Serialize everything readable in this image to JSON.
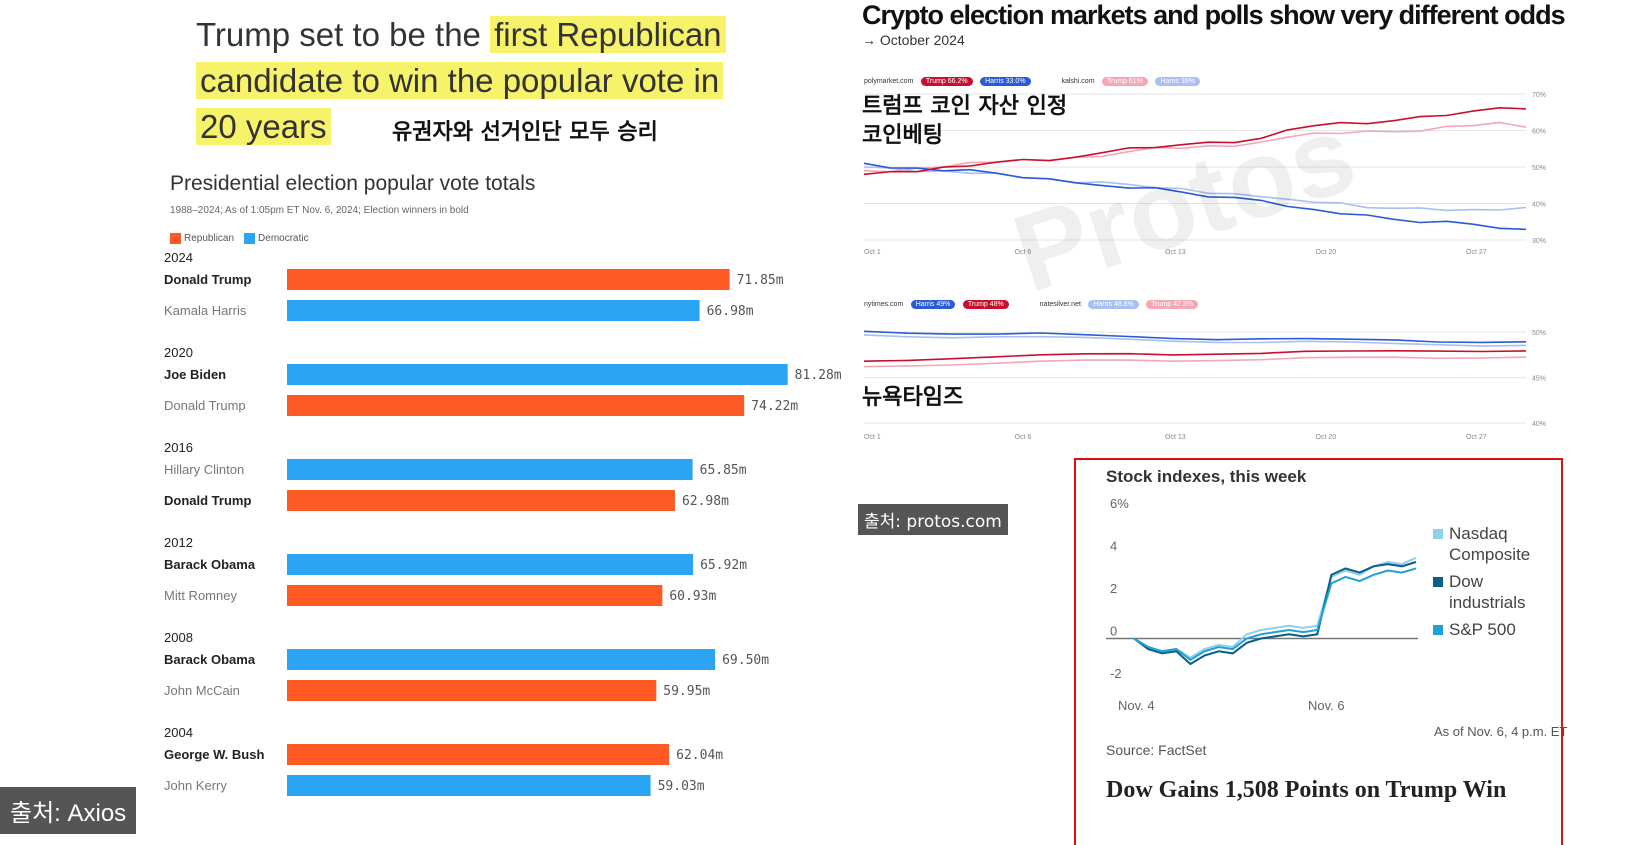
{
  "headline": {
    "prefix": "Trump set to be the ",
    "highlight1": "first Republican",
    "highlight2": "candidate to win the popular vote in",
    "highlight3": "20 years",
    "korean": "유권자와 선거인단 모두 승리"
  },
  "source_axios": "출처: Axios",
  "source_protos": "출처: protos.com",
  "chart_data": [
    {
      "type": "bar",
      "title": "Presidential election popular vote totals",
      "subtitle": "1988–2024; As of 1:05pm ET Nov. 6, 2024; Election winners in bold",
      "legend": [
        "Republican",
        "Democratic"
      ],
      "colors": {
        "Republican": "#ff5a24",
        "Democratic": "#2ba4f4"
      },
      "groups": [
        {
          "year": "2024",
          "bars": [
            {
              "candidate": "Donald Trump",
              "party": "Republican",
              "value": 71.85,
              "label": "71.85m",
              "winner": true
            },
            {
              "candidate": "Kamala Harris",
              "party": "Democratic",
              "value": 66.98,
              "label": "66.98m",
              "winner": false
            }
          ]
        },
        {
          "year": "2020",
          "bars": [
            {
              "candidate": "Joe Biden",
              "party": "Democratic",
              "value": 81.28,
              "label": "81.28m",
              "winner": true
            },
            {
              "candidate": "Donald Trump",
              "party": "Republican",
              "value": 74.22,
              "label": "74.22m",
              "winner": false
            }
          ]
        },
        {
          "year": "2016",
          "bars": [
            {
              "candidate": "Hillary Clinton",
              "party": "Democratic",
              "value": 65.85,
              "label": "65.85m",
              "winner": false
            },
            {
              "candidate": "Donald Trump",
              "party": "Republican",
              "value": 62.98,
              "label": "62.98m",
              "winner": true
            }
          ]
        },
        {
          "year": "2012",
          "bars": [
            {
              "candidate": "Barack Obama",
              "party": "Democratic",
              "value": 65.92,
              "label": "65.92m",
              "winner": true
            },
            {
              "candidate": "Mitt Romney",
              "party": "Republican",
              "value": 60.93,
              "label": "60.93m",
              "winner": false
            }
          ]
        },
        {
          "year": "2008",
          "bars": [
            {
              "candidate": "Barack Obama",
              "party": "Democratic",
              "value": 69.5,
              "label": "69.50m",
              "winner": true
            },
            {
              "candidate": "John McCain",
              "party": "Republican",
              "value": 59.95,
              "label": "59.95m",
              "winner": false
            }
          ]
        },
        {
          "year": "2004",
          "bars": [
            {
              "candidate": "George W. Bush",
              "party": "Republican",
              "value": 62.04,
              "label": "62.04m",
              "winner": true
            },
            {
              "candidate": "John Kerry",
              "party": "Democratic",
              "value": 59.03,
              "label": "59.03m",
              "winner": false
            }
          ]
        }
      ]
    },
    {
      "type": "line",
      "title": "Crypto election markets and polls show very different odds",
      "subtitle": "→ October 2024",
      "sources": [
        {
          "name": "polymarket.com",
          "pills": [
            {
              "text": "Trump 66.2%",
              "color": "#c8102e"
            },
            {
              "text": "Harris 33.0%",
              "color": "#2a5bd7"
            }
          ]
        },
        {
          "name": "kalshi.com",
          "pills": [
            {
              "text": "Trump 61%",
              "color": "#f4a7b4"
            },
            {
              "text": "Harris 39%",
              "color": "#a9bff2"
            }
          ]
        }
      ],
      "korean_label": [
        "트럼프 코인 자산 인정",
        "코인베팅"
      ],
      "x_ticks": [
        "Oct 1",
        "Oct 6",
        "Oct 13",
        "Oct 20",
        "Oct 27"
      ],
      "y_ticks": [
        "70%",
        "60%",
        "50%",
        "40%",
        "30%"
      ],
      "ylim": [
        30,
        70
      ],
      "series": [
        {
          "name": "Trump",
          "color": "#c8102e",
          "values": [
            48,
            49,
            49,
            50,
            50,
            51,
            52,
            52,
            53,
            54,
            55,
            55,
            56,
            57,
            57,
            58,
            60,
            61,
            62,
            62,
            63,
            64,
            64,
            65,
            66,
            66
          ]
        },
        {
          "name": "Harris",
          "color": "#2a5bd7",
          "values": [
            51,
            50,
            50,
            49,
            49,
            48,
            47,
            47,
            46,
            45,
            44,
            44,
            43,
            42,
            42,
            41,
            39,
            38,
            37,
            37,
            36,
            35,
            35,
            34,
            33,
            33
          ]
        },
        {
          "color": "#f4a7b4",
          "values": [
            49,
            49,
            50,
            50,
            51,
            51,
            52,
            52,
            53,
            53,
            54,
            55,
            55,
            56,
            56,
            57,
            58,
            59,
            59,
            60,
            60,
            60,
            61,
            61,
            62,
            61
          ]
        },
        {
          "color": "#a9bff2",
          "values": [
            50,
            50,
            49,
            49,
            48,
            48,
            47,
            47,
            46,
            46,
            45,
            44,
            44,
            43,
            43,
            42,
            41,
            40,
            40,
            39,
            39,
            39,
            38,
            38,
            38,
            39
          ]
        }
      ]
    },
    {
      "type": "line",
      "sources": [
        {
          "name": "nytimes.com",
          "pills": [
            {
              "text": "Harris 49%",
              "color": "#2a5bd7"
            },
            {
              "text": "Trump 48%",
              "color": "#c8102e"
            }
          ]
        },
        {
          "name": "natesilver.net",
          "pills": [
            {
              "text": "Harris 48.6%",
              "color": "#a9bff2"
            },
            {
              "text": "Trump 47.3%",
              "color": "#f4a7b4"
            }
          ]
        }
      ],
      "korean_label": [
        "뉴욕타임즈"
      ],
      "x_ticks": [
        "Oct 1",
        "Oct 6",
        "Oct 13",
        "Oct 20",
        "Oct 27"
      ],
      "y_ticks": [
        "50%",
        "45%",
        "40%"
      ],
      "ylim": [
        40,
        52
      ],
      "series": [
        {
          "name": "Harris",
          "color": "#2a5bd7",
          "values": [
            50.1,
            50.0,
            49.9,
            49.8,
            49.8,
            49.6,
            49.5,
            49.4,
            49.3,
            49.3,
            49.2,
            49.1,
            49.1,
            49.0,
            49.0,
            49.0
          ]
        },
        {
          "name": "Trump",
          "color": "#c8102e",
          "values": [
            46.8,
            47.0,
            47.2,
            47.3,
            47.4,
            47.5,
            47.6,
            47.6,
            47.7,
            47.7,
            47.8,
            47.8,
            47.9,
            48.0,
            48.0,
            48.0
          ]
        },
        {
          "color": "#a9bff2",
          "values": [
            49.7,
            49.6,
            49.5,
            49.5,
            49.4,
            49.3,
            49.2,
            49.1,
            49.0,
            48.9,
            48.9,
            48.8,
            48.7,
            48.7,
            48.6,
            48.6
          ]
        },
        {
          "color": "#f4a7b4",
          "values": [
            46.2,
            46.4,
            46.5,
            46.6,
            46.7,
            46.8,
            46.9,
            46.9,
            47.0,
            47.0,
            47.1,
            47.1,
            47.2,
            47.2,
            47.3,
            47.3
          ]
        }
      ]
    },
    {
      "type": "line",
      "title": "Stock indexes, this week",
      "x_ticks": [
        "Nov. 4",
        "Nov. 6"
      ],
      "y_ticks": [
        "6%",
        "4",
        "2",
        "0",
        "-2"
      ],
      "ylim": [
        -2,
        6
      ],
      "series": [
        {
          "name": "Nasdaq Composite",
          "color": "#8fd0ee",
          "values": [
            0,
            -0.4,
            -0.6,
            -0.5,
            -0.9,
            -0.5,
            -0.3,
            -0.4,
            0.2,
            0.4,
            0.5,
            0.6,
            0.5,
            0.6,
            2.9,
            3.2,
            3.0,
            3.4,
            3.6,
            3.5,
            3.8
          ]
        },
        {
          "name": "Dow industrials",
          "color": "#0a5d86",
          "values": [
            0,
            -0.5,
            -0.7,
            -0.6,
            -1.2,
            -0.8,
            -0.6,
            -0.7,
            -0.2,
            0.0,
            0.1,
            0.2,
            0.1,
            0.2,
            3.0,
            3.3,
            3.1,
            3.4,
            3.5,
            3.4,
            3.6
          ]
        },
        {
          "name": "S&P 500",
          "color": "#1ea0d4",
          "values": [
            0,
            -0.4,
            -0.6,
            -0.5,
            -1.0,
            -0.6,
            -0.4,
            -0.5,
            0.0,
            0.2,
            0.3,
            0.4,
            0.3,
            0.4,
            2.6,
            2.9,
            2.7,
            3.0,
            3.2,
            3.1,
            3.3
          ]
        }
      ],
      "note": "As of Nov. 6, 4 p.m. ET",
      "source": "Source: FactSet",
      "headline": "Dow Gains 1,508 Points on Trump Win"
    }
  ]
}
